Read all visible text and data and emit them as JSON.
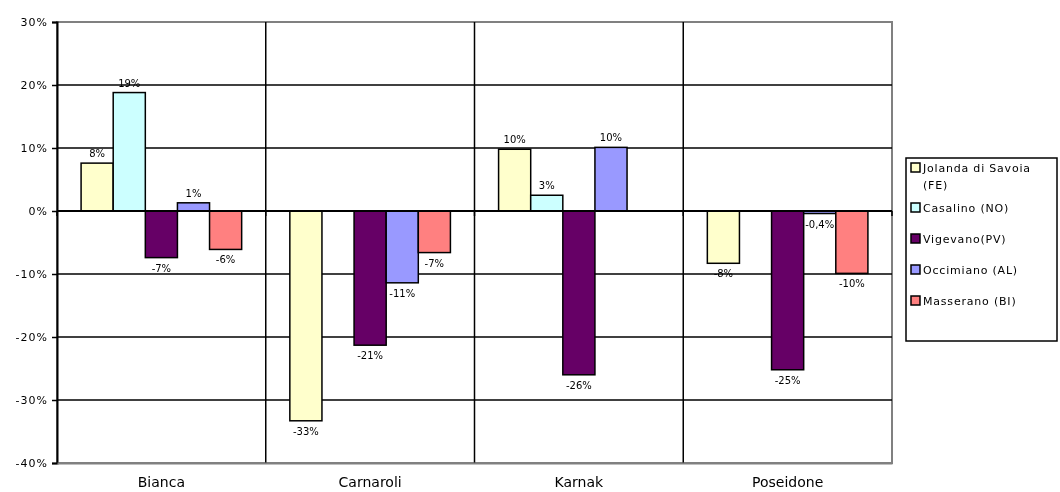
{
  "chart_data": {
    "type": "bar",
    "categories": [
      "Bianca",
      "Carnaroli",
      "Karnak",
      "Poseidone"
    ],
    "series": [
      {
        "name": "Jolanda di Savoia (FE)",
        "color": "#ffffcc",
        "values": [
          7.6,
          -33.3,
          9.8,
          -8.3
        ],
        "value_labels": [
          "8%",
          "-33%",
          "10%",
          "-8%"
        ]
      },
      {
        "name": "Casalino (NO)",
        "color": "#ccffff",
        "values": [
          18.8,
          null,
          2.5,
          null
        ],
        "value_labels": [
          "19%",
          null,
          "3%",
          null
        ]
      },
      {
        "name": "Vigevano(PV)",
        "color": "#660066",
        "values": [
          -7.4,
          -21.3,
          -26.0,
          -25.2
        ],
        "value_labels": [
          "-7%",
          "-21%",
          "-26%",
          "-25%"
        ]
      },
      {
        "name": "Occimiano (AL)",
        "color": "#9999ff",
        "values": [
          1.3,
          -11.4,
          10.1,
          -0.4
        ],
        "value_labels": [
          "1%",
          "-11%",
          "10%",
          "-0,4%"
        ]
      },
      {
        "name": "Masserano (BI)",
        "color": "#ff8080",
        "values": [
          -6.1,
          -6.6,
          null,
          -9.9
        ],
        "value_labels": [
          "-6%",
          "-7%",
          null,
          "-10%"
        ]
      }
    ],
    "ylim": [
      -40,
      30
    ],
    "yticks": [
      {
        "value": -40,
        "label": "-40%"
      },
      {
        "value": -30,
        "label": "-30%"
      },
      {
        "value": -20,
        "label": "-20%"
      },
      {
        "value": -10,
        "label": "-10%"
      },
      {
        "value": 0,
        "label": "0%"
      },
      {
        "value": 10,
        "label": "10%"
      },
      {
        "value": 20,
        "label": "20%"
      },
      {
        "value": 30,
        "label": "30%"
      }
    ],
    "grid": true,
    "legend": "right"
  }
}
